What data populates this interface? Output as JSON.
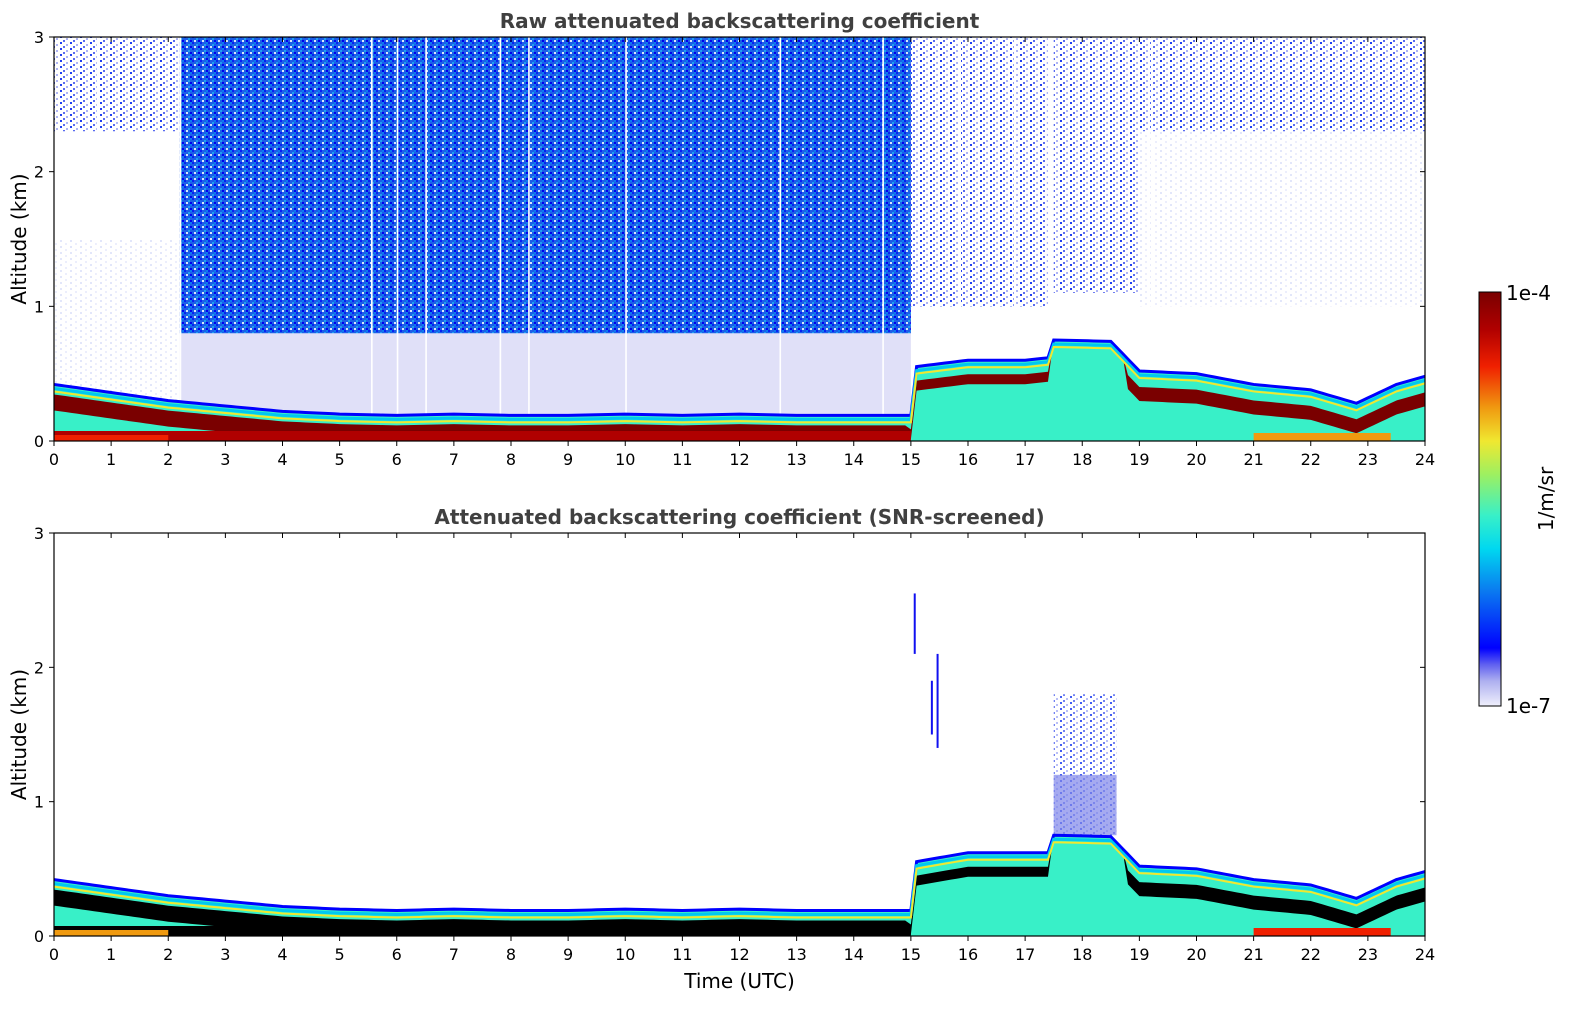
{
  "colors": {
    "colormap": [
      "#e8e8f8",
      "#aeb0f0",
      "#0000ff",
      "#0a7cf0",
      "#00d8f0",
      "#38f0c8",
      "#9ef060",
      "#f0e830",
      "#f09a10",
      "#f02000",
      "#b00000",
      "#7a0000"
    ],
    "clean": "#e0e0f8",
    "scatter": "#0055ee",
    "hull": "#0d82f0",
    "rain": "#1a5ce6",
    "mid": "#1c49e6",
    "snr_body": "#4a4af0",
    "black_layer": "#000000",
    "frame": "#000000",
    "title": "#404040"
  },
  "chart_data": [
    {
      "type": "heatmap",
      "title": "Raw attenuated backscattering coefficient",
      "xlabel": "",
      "ylabel": "Altitude (km)",
      "xlim": [
        0,
        24
      ],
      "ylim": [
        0,
        3
      ],
      "xticks": [
        "0",
        "1",
        "2",
        "3",
        "4",
        "5",
        "6",
        "7",
        "8",
        "9",
        "10",
        "11",
        "12",
        "13",
        "14",
        "15",
        "16",
        "17",
        "18",
        "19",
        "20",
        "21",
        "22",
        "23",
        "24"
      ],
      "yticks": [
        "0",
        "1",
        "2",
        "3"
      ],
      "boundary_layer_top_km": [
        [
          0,
          0.42
        ],
        [
          1,
          0.36
        ],
        [
          2,
          0.3
        ],
        [
          3,
          0.26
        ],
        [
          4,
          0.22
        ],
        [
          5,
          0.2
        ],
        [
          6,
          0.19
        ],
        [
          7,
          0.2
        ],
        [
          8,
          0.19
        ],
        [
          9,
          0.19
        ],
        [
          10,
          0.2
        ],
        [
          11,
          0.19
        ],
        [
          12,
          0.2
        ],
        [
          13,
          0.19
        ],
        [
          14,
          0.19
        ],
        [
          15,
          0.19
        ],
        [
          15.05,
          0.55
        ],
        [
          16,
          0.6
        ],
        [
          17,
          0.6
        ],
        [
          17.45,
          0.62
        ],
        [
          17.5,
          0.75
        ],
        [
          18.5,
          0.74
        ],
        [
          19,
          0.52
        ],
        [
          20,
          0.5
        ],
        [
          21,
          0.42
        ],
        [
          22,
          0.38
        ],
        [
          22.8,
          0.28
        ],
        [
          23.5,
          0.42
        ],
        [
          24,
          0.48
        ]
      ],
      "noise_region_km": [
        [
          2.2,
          15.0,
          0.8,
          3.0
        ],
        [
          15.0,
          17.4,
          1.0,
          3.0
        ],
        [
          17.5,
          19.0,
          1.1,
          3.0
        ]
      ]
    },
    {
      "type": "heatmap",
      "title": "Attenuated backscattering coefficient (SNR-screened)",
      "xlabel": "Time (UTC)",
      "ylabel": "Altitude (km)",
      "xlim": [
        0,
        24
      ],
      "ylim": [
        0,
        3
      ],
      "xticks": [
        "0",
        "1",
        "2",
        "3",
        "4",
        "5",
        "6",
        "7",
        "8",
        "9",
        "10",
        "11",
        "12",
        "13",
        "14",
        "15",
        "16",
        "17",
        "18",
        "19",
        "20",
        "21",
        "22",
        "23",
        "24"
      ],
      "yticks": [
        "0",
        "1",
        "2",
        "3"
      ],
      "signal_top_km": [
        [
          0,
          0.42
        ],
        [
          1,
          0.36
        ],
        [
          2,
          0.3
        ],
        [
          3,
          0.26
        ],
        [
          4,
          0.22
        ],
        [
          5,
          0.2
        ],
        [
          6,
          0.19
        ],
        [
          7,
          0.2
        ],
        [
          8,
          0.19
        ],
        [
          9,
          0.19
        ],
        [
          10,
          0.2
        ],
        [
          11,
          0.19
        ],
        [
          12,
          0.2
        ],
        [
          13,
          0.19
        ],
        [
          14,
          0.19
        ],
        [
          15,
          0.19
        ],
        [
          15.05,
          0.55
        ],
        [
          16,
          0.62
        ],
        [
          17,
          0.62
        ],
        [
          17.45,
          0.62
        ],
        [
          17.5,
          0.75
        ],
        [
          18.5,
          0.74
        ],
        [
          19,
          0.52
        ],
        [
          20,
          0.5
        ],
        [
          21,
          0.42
        ],
        [
          22,
          0.38
        ],
        [
          22.8,
          0.28
        ],
        [
          23.5,
          0.42
        ],
        [
          24,
          0.48
        ]
      ],
      "residual_cloud_km": [
        [
          17.5,
          18.6,
          0.75,
          1.8
        ]
      ]
    }
  ],
  "colorbar": {
    "max_label": "1e-4",
    "min_label": "1e-7",
    "unit_label": "1/m/sr"
  }
}
